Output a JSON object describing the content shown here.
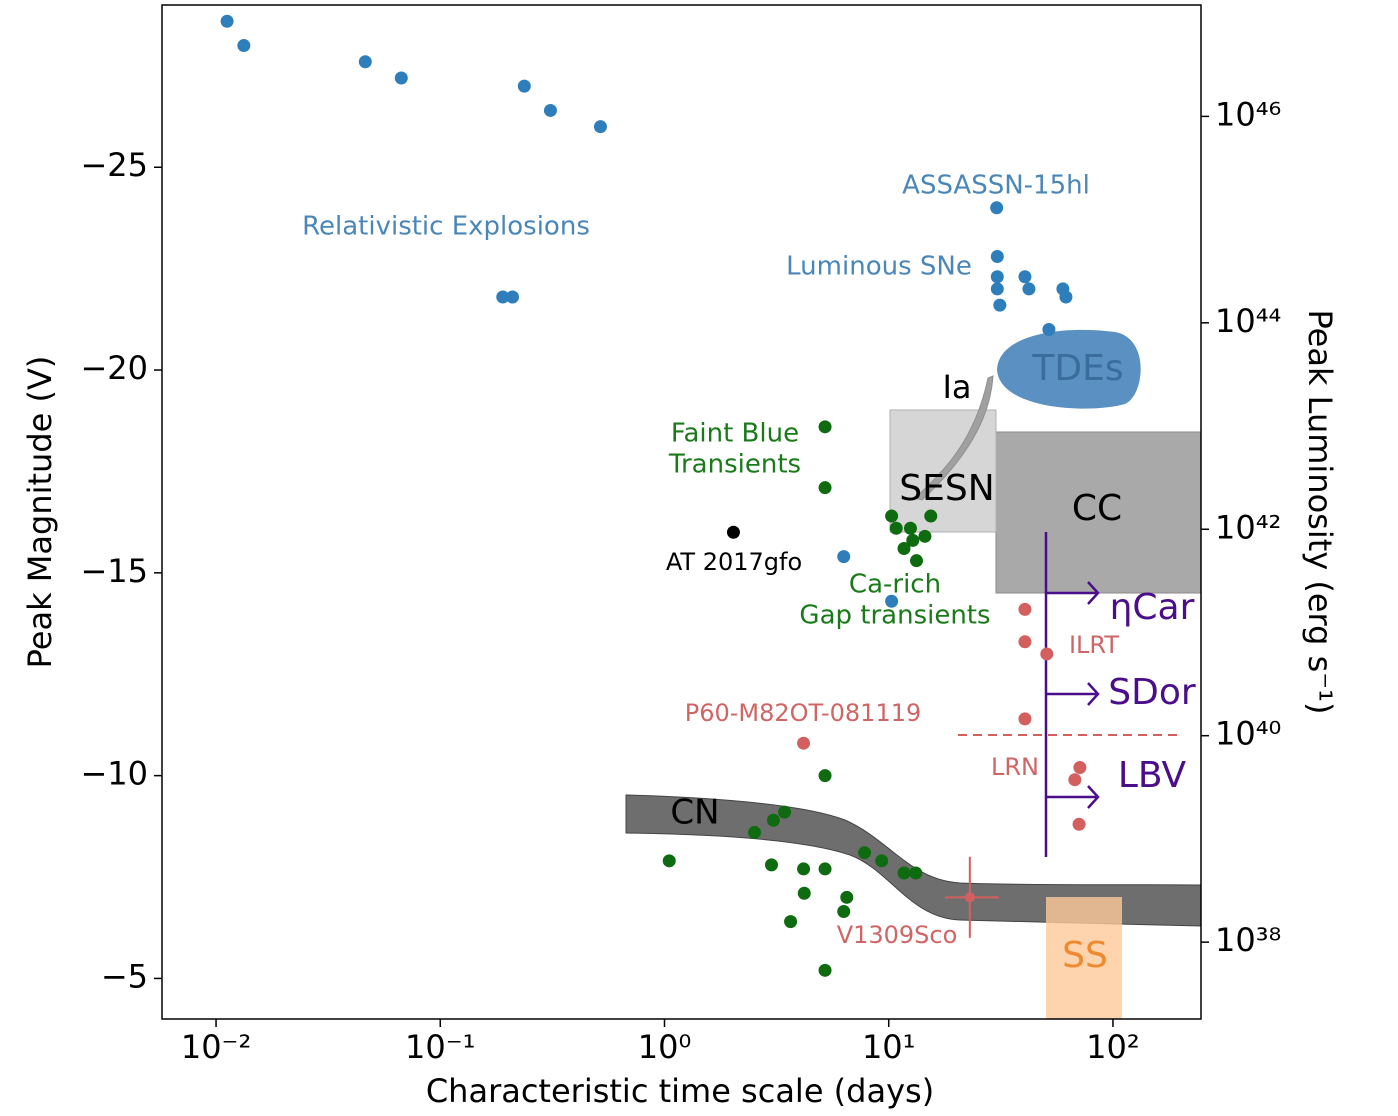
{
  "chart_data": {
    "type": "scatter",
    "xlabel": "Characteristic time scale (days)",
    "ylabel": "Peak Magnitude (V)",
    "y2label": "Peak Luminosity (erg s⁻¹)",
    "xscale": "log",
    "y2scale": "log",
    "xlim": [
      0.00574,
      247
    ],
    "ylim": [
      -4,
      -29
    ],
    "y2lim": [
      1.8e+37,
      1.2e+47
    ],
    "xticks": [
      {
        "value": 0.01,
        "label": "10⁻²"
      },
      {
        "value": 0.1,
        "label": "10⁻¹"
      },
      {
        "value": 1,
        "label": "10⁰"
      },
      {
        "value": 10,
        "label": "10¹"
      },
      {
        "value": 100,
        "label": "10²"
      }
    ],
    "yticks": [
      {
        "value": -25,
        "label": "−25"
      },
      {
        "value": -20,
        "label": "−20"
      },
      {
        "value": -15,
        "label": "−15"
      },
      {
        "value": -10,
        "label": "−10"
      },
      {
        "value": -5,
        "label": "−5"
      }
    ],
    "y2ticks": [
      {
        "value": 1e+46,
        "label": "10⁴⁶"
      },
      {
        "value": 1e+44,
        "label": "10⁴⁴"
      },
      {
        "value": 1e+42,
        "label": "10⁴²"
      },
      {
        "value": 1e+40,
        "label": "10⁴⁰"
      },
      {
        "value": 1e+38,
        "label": "10³⁸"
      }
    ],
    "series": [
      {
        "color": "#2e7ebc",
        "x": [
          0.0112,
          0.0133,
          0.0463,
          0.067,
          0.237,
          0.31,
          0.518,
          0.19,
          0.21,
          30.3,
          30.5,
          30.5,
          30.5,
          31.3,
          40.5,
          42.2,
          59.8,
          61.7,
          51.8,
          6.3,
          10.3
        ],
        "values": [
          -28.6,
          -28.0,
          -27.6,
          -27.2,
          -27.0,
          -26.4,
          -26.0,
          -21.8,
          -21.8,
          -24.0,
          -22.8,
          -22.3,
          -22.0,
          -21.6,
          -22.3,
          -22.0,
          -22.0,
          -21.8,
          -21.0,
          -15.4,
          -14.3
        ]
      },
      {
        "color": "#0f6b0f",
        "x": [
          5.2,
          5.2,
          10.3,
          10.8,
          12.5,
          15.4,
          14.5,
          12.8,
          11.7,
          13.3,
          5.2,
          3.43,
          3.06,
          2.52,
          1.05,
          3.0,
          4.17,
          5.2,
          7.8,
          9.3,
          11.7,
          13.2,
          4.2,
          6.5,
          6.3,
          3.65,
          5.2
        ],
        "values": [
          -18.6,
          -17.1,
          -16.4,
          -16.1,
          -16.1,
          -16.4,
          -15.9,
          -15.8,
          -15.6,
          -15.3,
          -10.0,
          -9.1,
          -8.9,
          -8.6,
          -7.9,
          -7.8,
          -7.7,
          -7.7,
          -8.1,
          -7.9,
          -7.6,
          -7.6,
          -7.1,
          -7.0,
          -6.65,
          -6.4,
          -5.2
        ]
      },
      {
        "color": "#d45f5f",
        "x": [
          40.5,
          40.5,
          50.7,
          40.5,
          4.17,
          71.2,
          67.6,
          70.6
        ],
        "values": [
          -14.1,
          -13.3,
          -13.0,
          -11.4,
          -10.8,
          -10.2,
          -9.9,
          -8.8
        ]
      },
      {
        "color": "#d45f5f",
        "x": [
          23.0
        ],
        "values": [
          -7.0
        ],
        "yerr": [
          1.0
        ],
        "xrange": [
          [
            17.8,
            31.0
          ]
        ]
      },
      {
        "color": "#000000",
        "x": [
          2.03
        ],
        "values": [
          -16.0
        ]
      }
    ],
    "annotations": [
      "Relativistic Explosions",
      "ASSASSN-15hl",
      "Luminous SNe",
      "TDEs",
      "Ia",
      "Faint Blue",
      "Transients",
      "SESN",
      "CC",
      "AT 2017gfo",
      "Ca-rich",
      "Gap transients",
      "ηCar",
      "ILRT",
      "SDor",
      "P60-M82OT-081119",
      "LRN",
      "LBV",
      "CN",
      "V1309Sco",
      "SS"
    ]
  }
}
